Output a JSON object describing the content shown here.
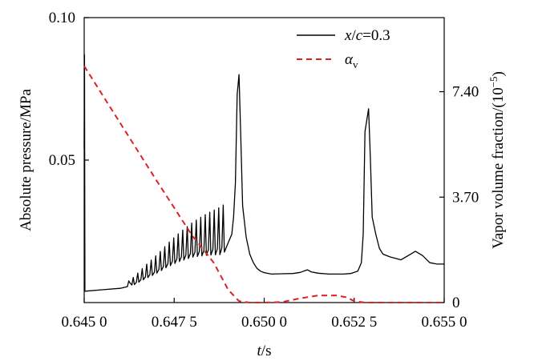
{
  "chart_data": {
    "type": "line",
    "title": "",
    "xlabel": {
      "italic": "t",
      "rest": "/s"
    },
    "ylabel_left": "Absolute pressure/MPa",
    "ylabel_right": "Vapor volume fraction/(10",
    "ylabel_right_sup": "−5",
    "ylabel_right_close": ")",
    "xlim": [
      0.645,
      0.655
    ],
    "ylim_left": [
      0.0,
      0.1
    ],
    "ylim_right": [
      0.0,
      10.0
    ],
    "x_ticks": [
      0.645,
      0.6475,
      0.65,
      0.6525,
      0.655
    ],
    "x_tick_labels": [
      "0.645 0",
      "0.647 5",
      "0.650 0",
      "0.652 5",
      "0.655 0"
    ],
    "y_left_ticks": [
      0.05,
      0.1
    ],
    "y_left_tick_labels": [
      "0.05",
      "0.10"
    ],
    "y_right_ticks": [
      0,
      3.7,
      7.4
    ],
    "y_right_tick_labels": [
      "0",
      "3.70",
      "7.40"
    ],
    "legend_position": "top-right",
    "series": [
      {
        "name": "x/c=0.3",
        "legend": {
          "i1": "x",
          "mid": "/",
          "i2": "c",
          "rest": "=0.3"
        },
        "axis": "left",
        "color": "#000000",
        "style": "solid",
        "x": [
          0.645,
          0.64501,
          0.64502,
          0.6455,
          0.646,
          0.6462,
          0.64625,
          0.6463,
          0.6465,
          0.6467,
          0.647,
          0.6473,
          0.6476,
          0.648,
          0.6484,
          0.6488,
          0.649,
          0.6491,
          0.64915,
          0.6492,
          0.64925,
          0.6493,
          0.64935,
          0.6494,
          0.6495,
          0.6496,
          0.6497,
          0.6498,
          0.6499,
          0.65,
          0.6502,
          0.6505,
          0.6508,
          0.651,
          0.6512,
          0.6513,
          0.6515,
          0.6518,
          0.652,
          0.6522,
          0.6524,
          0.6526,
          0.6527,
          0.65275,
          0.6528,
          0.6529,
          0.65295,
          0.653,
          0.6531,
          0.6532,
          0.6533,
          0.6535,
          0.6538,
          0.654,
          0.6542,
          0.6544,
          0.6546,
          0.6548,
          0.655
        ],
        "y": [
          0.054,
          0.087,
          0.004,
          0.0045,
          0.005,
          0.0056,
          0.008,
          0.006,
          0.0075,
          0.009,
          0.011,
          0.0135,
          0.0155,
          0.0175,
          0.0185,
          0.019,
          0.021,
          0.024,
          0.03,
          0.042,
          0.073,
          0.08,
          0.058,
          0.034,
          0.023,
          0.017,
          0.014,
          0.012,
          0.011,
          0.0105,
          0.01,
          0.0101,
          0.0102,
          0.0106,
          0.0115,
          0.0108,
          0.0103,
          0.01,
          0.01,
          0.01,
          0.0102,
          0.011,
          0.014,
          0.024,
          0.06,
          0.068,
          0.05,
          0.03,
          0.024,
          0.019,
          0.017,
          0.016,
          0.015,
          0.0165,
          0.018,
          0.0165,
          0.014,
          0.0135,
          0.0135
        ]
      },
      {
        "name": "α_v",
        "legend": {
          "i1": "α",
          "sub": "v"
        },
        "axis": "right",
        "color": "#dd2222",
        "style": "dashed",
        "x": [
          0.645,
          0.646,
          0.647,
          0.648,
          0.6486,
          0.649,
          0.6493,
          0.6496,
          0.65,
          0.6505,
          0.651,
          0.6515,
          0.652,
          0.6523,
          0.6525,
          0.6528,
          0.6532,
          0.654,
          0.655
        ],
        "y": [
          8.3,
          6.3,
          4.3,
          2.35,
          1.4,
          0.45,
          0.05,
          0.0,
          0.0,
          0.02,
          0.15,
          0.25,
          0.25,
          0.18,
          0.05,
          0.0,
          0.0,
          0.0,
          0.0
        ]
      }
    ],
    "oscillation": {
      "x_start": 0.6462,
      "x_end": 0.64895,
      "count": 22,
      "amplitude_left": 0.013,
      "start_height": 0.002,
      "end_height": 0.015
    }
  }
}
